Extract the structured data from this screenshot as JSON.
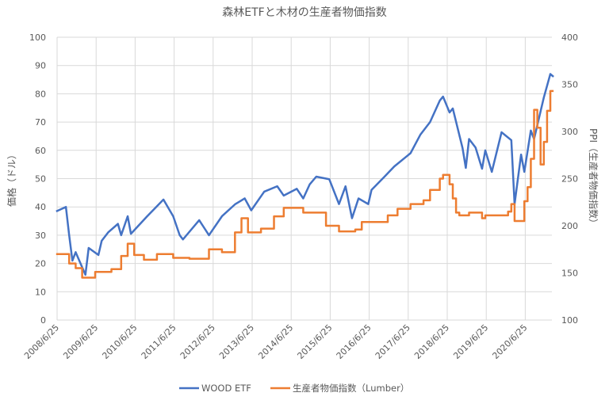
{
  "chart_data": {
    "type": "line",
    "title": "森林ETFと木材の生産者物価指数",
    "ylabel": "価格（ドル）",
    "y2label": "PPI（生産者物価指数）",
    "xlabel": "",
    "ylim": [
      0,
      100
    ],
    "y2lim": [
      100,
      400
    ],
    "yticks": [
      "0",
      "10",
      "20",
      "30",
      "40",
      "50",
      "60",
      "70",
      "80",
      "90",
      "100"
    ],
    "y2ticks": [
      "100",
      "150",
      "200",
      "250",
      "300",
      "350",
      "400"
    ],
    "xticks": [
      "2008/6/25",
      "2009/6/25",
      "2010/6/25",
      "2011/6/25",
      "2012/6/25",
      "2013/6/25",
      "2014/6/25",
      "2015/6/25",
      "2016/6/25",
      "2017/6/25",
      "2018/6/25",
      "2019/6/25",
      "2020/6/25"
    ],
    "grid": true,
    "legend": "bottom",
    "series": [
      {
        "name": "WOOD ETF",
        "axis": "left",
        "color": "#4472C4",
        "style": "line",
        "points": [
          [
            "2008-06",
            38.4
          ],
          [
            "2008-09",
            40
          ],
          [
            "2008-10",
            30
          ],
          [
            "2008-11",
            21
          ],
          [
            "2008-12",
            24
          ],
          [
            "2009-03",
            16
          ],
          [
            "2009-04",
            25.5
          ],
          [
            "2009-07",
            23
          ],
          [
            "2009-08",
            28
          ],
          [
            "2009-10",
            31
          ],
          [
            "2010-01",
            34
          ],
          [
            "2010-02",
            30
          ],
          [
            "2010-04",
            36.7
          ],
          [
            "2010-05",
            30.5
          ],
          [
            "2010-10",
            36.7
          ],
          [
            "2011-03",
            42.6
          ],
          [
            "2011-06",
            36.7
          ],
          [
            "2011-08",
            30
          ],
          [
            "2011-09",
            28.5
          ],
          [
            "2012-02",
            35.3
          ],
          [
            "2012-05",
            30
          ],
          [
            "2012-09",
            36.7
          ],
          [
            "2013-01",
            40.9
          ],
          [
            "2013-04",
            43
          ],
          [
            "2013-06",
            38.8
          ],
          [
            "2013-10",
            45.4
          ],
          [
            "2014-02",
            47.3
          ],
          [
            "2014-04",
            44
          ],
          [
            "2014-08",
            46.4
          ],
          [
            "2014-10",
            43
          ],
          [
            "2014-12",
            48
          ],
          [
            "2015-02",
            50.7
          ],
          [
            "2015-06",
            49.8
          ],
          [
            "2015-09",
            41
          ],
          [
            "2015-11",
            47.3
          ],
          [
            "2016-01",
            36
          ],
          [
            "2016-03",
            43
          ],
          [
            "2016-06",
            41
          ],
          [
            "2016-07",
            46
          ],
          [
            "2016-11",
            50.7
          ],
          [
            "2017-02",
            54.3
          ],
          [
            "2017-07",
            59
          ],
          [
            "2017-10",
            65.5
          ],
          [
            "2018-01",
            70
          ],
          [
            "2018-04",
            77.6
          ],
          [
            "2018-05",
            79
          ],
          [
            "2018-07",
            73.4
          ],
          [
            "2018-08",
            74.8
          ],
          [
            "2018-11",
            60.8
          ],
          [
            "2018-12",
            53.8
          ],
          [
            "2019-01",
            64
          ],
          [
            "2019-03",
            61
          ],
          [
            "2019-05",
            53.5
          ],
          [
            "2019-06",
            60
          ],
          [
            "2019-08",
            52.4
          ],
          [
            "2019-11",
            66.4
          ],
          [
            "2020-02",
            63.6
          ],
          [
            "2020-03",
            41
          ],
          [
            "2020-05",
            58.5
          ],
          [
            "2020-06",
            52.4
          ],
          [
            "2020-08",
            67
          ],
          [
            "2020-09",
            64
          ],
          [
            "2020-12",
            78.7
          ],
          [
            "2021-02",
            87
          ],
          [
            "2021-03",
            86
          ]
        ]
      },
      {
        "name": "生産者物価指数（Lumber）",
        "axis": "right",
        "color": "#ED7D31",
        "style": "step",
        "points": [
          [
            "2008-06",
            170
          ],
          [
            "2008-10",
            160
          ],
          [
            "2008-12",
            155
          ],
          [
            "2009-02",
            145
          ],
          [
            "2009-06",
            151
          ],
          [
            "2009-11",
            154
          ],
          [
            "2010-02",
            168
          ],
          [
            "2010-04",
            181
          ],
          [
            "2010-06",
            169
          ],
          [
            "2010-09",
            164
          ],
          [
            "2011-01",
            170
          ],
          [
            "2011-06",
            166
          ],
          [
            "2011-11",
            165
          ],
          [
            "2012-05",
            175
          ],
          [
            "2012-09",
            172
          ],
          [
            "2013-01",
            193
          ],
          [
            "2013-03",
            208
          ],
          [
            "2013-05",
            193
          ],
          [
            "2013-09",
            197
          ],
          [
            "2014-01",
            210
          ],
          [
            "2014-04",
            219
          ],
          [
            "2014-10",
            214
          ],
          [
            "2015-05",
            200
          ],
          [
            "2015-09",
            194
          ],
          [
            "2016-02",
            196
          ],
          [
            "2016-04",
            204
          ],
          [
            "2016-12",
            211
          ],
          [
            "2017-03",
            218
          ],
          [
            "2017-07",
            223
          ],
          [
            "2017-11",
            227
          ],
          [
            "2018-01",
            238
          ],
          [
            "2018-04",
            250
          ],
          [
            "2018-05",
            254
          ],
          [
            "2018-07",
            244
          ],
          [
            "2018-08",
            229
          ],
          [
            "2018-09",
            214
          ],
          [
            "2018-10",
            211
          ],
          [
            "2019-01",
            214
          ],
          [
            "2019-05",
            208
          ],
          [
            "2019-06",
            211
          ],
          [
            "2020-01",
            215
          ],
          [
            "2020-02",
            223
          ],
          [
            "2020-03",
            205
          ],
          [
            "2020-06",
            226
          ],
          [
            "2020-07",
            241
          ],
          [
            "2020-08",
            271
          ],
          [
            "2020-09",
            323
          ],
          [
            "2020-10",
            304
          ],
          [
            "2020-11",
            265
          ],
          [
            "2020-12",
            289
          ],
          [
            "2021-01",
            322
          ],
          [
            "2021-02",
            343
          ],
          [
            "2021-03",
            343
          ]
        ]
      }
    ]
  }
}
